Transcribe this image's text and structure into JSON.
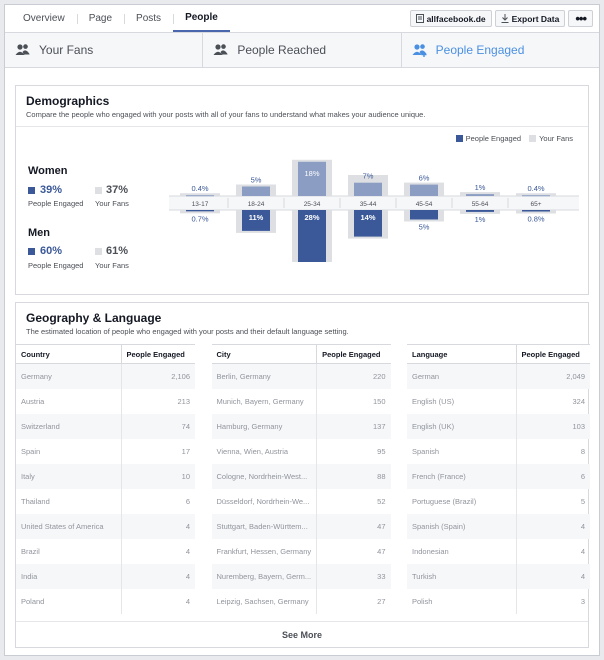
{
  "nav": {
    "items": [
      "Overview",
      "Page",
      "Posts",
      "People"
    ],
    "active": 3
  },
  "topbar": {
    "page_name": "allfacebook.de",
    "export_label": "Export Data",
    "more_label": "•••"
  },
  "tabs": [
    {
      "label": "Your Fans",
      "icon": "people-icon"
    },
    {
      "label": "People Reached",
      "icon": "people-icon"
    },
    {
      "label": "People Engaged",
      "icon": "people-add-icon"
    }
  ],
  "demographics": {
    "title": "Demographics",
    "subtitle": "Compare the people who engaged with your posts with all of your fans to understand what makes your audience unique.",
    "legend": {
      "engaged": "People Engaged",
      "fans": "Your Fans"
    },
    "women": {
      "label": "Women",
      "engaged": "39%",
      "fans": "37%"
    },
    "men": {
      "label": "Men",
      "engaged": "60%",
      "fans": "61%"
    },
    "engaged_label": "People Engaged",
    "fans_label": "Your Fans",
    "colors": {
      "engaged_men": "#3b5998",
      "engaged_women": "#8b9dc3",
      "fans": "#dddfe2"
    }
  },
  "chart_data": {
    "type": "bar",
    "categories": [
      "13-17",
      "18-24",
      "25-34",
      "35-44",
      "45-54",
      "55-64",
      "65+"
    ],
    "series": [
      {
        "name": "Women People Engaged",
        "values": [
          0.4,
          5,
          18,
          7,
          6,
          1,
          0.4
        ],
        "labels": [
          "0.4%",
          "5%",
          "18%",
          "7%",
          "6%",
          "1%",
          "0.4%"
        ]
      },
      {
        "name": "Men People Engaged",
        "values": [
          0.7,
          11,
          28,
          14,
          5,
          1,
          0.8
        ],
        "labels": [
          "0.7%",
          "11%",
          "28%",
          "14%",
          "5%",
          "1%",
          "0.8%"
        ]
      },
      {
        "name": "Women Your Fans",
        "values": [
          0.4,
          5,
          18,
          10,
          6,
          1,
          0.4
        ]
      },
      {
        "name": "Men Your Fans",
        "values": [
          0.7,
          11,
          28,
          14,
          5,
          1,
          0.8
        ]
      }
    ]
  },
  "geography": {
    "title": "Geography & Language",
    "subtitle": "The estimated location of people who engaged with your posts and their default language setting.",
    "see_more": "See More",
    "countries": {
      "headers": [
        "Country",
        "People Engaged"
      ],
      "rows": [
        [
          "Germany",
          "2,106"
        ],
        [
          "Austria",
          "213"
        ],
        [
          "Switzerland",
          "74"
        ],
        [
          "Spain",
          "17"
        ],
        [
          "Italy",
          "10"
        ],
        [
          "Thailand",
          "6"
        ],
        [
          "United States of America",
          "4"
        ],
        [
          "Brazil",
          "4"
        ],
        [
          "India",
          "4"
        ],
        [
          "Poland",
          "4"
        ]
      ]
    },
    "cities": {
      "headers": [
        "City",
        "People Engaged"
      ],
      "rows": [
        [
          "Berlin, Germany",
          "220"
        ],
        [
          "Munich, Bayern, Germany",
          "150"
        ],
        [
          "Hamburg, Germany",
          "137"
        ],
        [
          "Vienna, Wien, Austria",
          "95"
        ],
        [
          "Cologne, Nordrhein-West...",
          "88"
        ],
        [
          "Düsseldorf, Nordrhein-We...",
          "52"
        ],
        [
          "Stuttgart, Baden-Württem...",
          "47"
        ],
        [
          "Frankfurt, Hessen, Germany",
          "47"
        ],
        [
          "Nuremberg, Bayern, Germ...",
          "33"
        ],
        [
          "Leipzig, Sachsen, Germany",
          "27"
        ]
      ]
    },
    "languages": {
      "headers": [
        "Language",
        "People Engaged"
      ],
      "rows": [
        [
          "German",
          "2,049"
        ],
        [
          "English (US)",
          "324"
        ],
        [
          "English (UK)",
          "103"
        ],
        [
          "Spanish",
          "8"
        ],
        [
          "French (France)",
          "6"
        ],
        [
          "Portuguese (Brazil)",
          "5"
        ],
        [
          "Spanish (Spain)",
          "4"
        ],
        [
          "Indonesian",
          "4"
        ],
        [
          "Turkish",
          "4"
        ],
        [
          "Polish",
          "3"
        ]
      ]
    }
  }
}
